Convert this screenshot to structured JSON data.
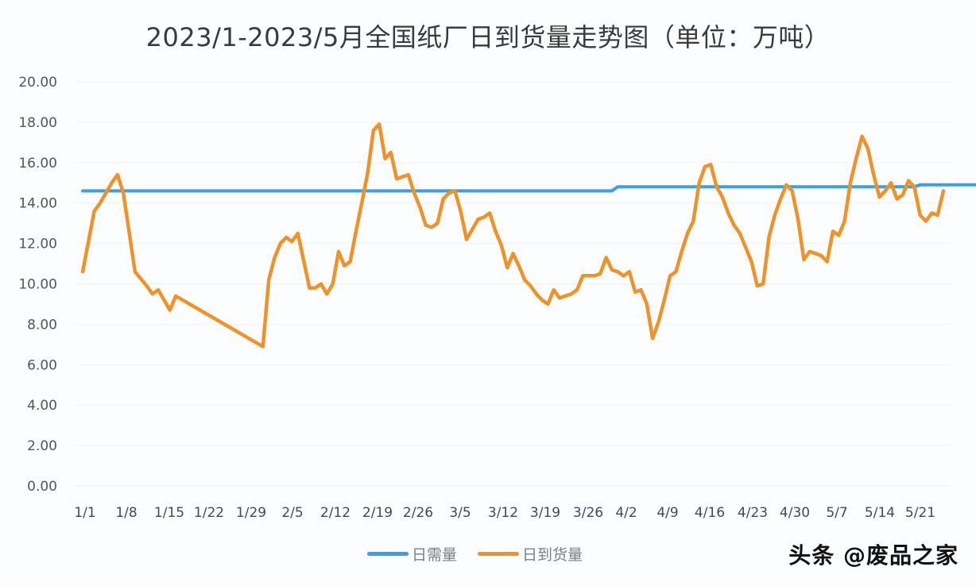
{
  "title": "2023/1-2023/5月全国纸厂日到货量走势图（单位：万吨）",
  "watermark": "头条 @废品之家",
  "legend": [
    {
      "label": "日需量",
      "color": "#3aa0e6"
    },
    {
      "label": "日到货量",
      "color": "#f0922a"
    }
  ],
  "y_ticks": [
    "20.00",
    "18.00",
    "16.00",
    "14.00",
    "12.00",
    "10.00",
    "8.00",
    "6.00",
    "4.00",
    "2.00",
    "0.00"
  ],
  "x_ticks": [
    "1/1",
    "1/8",
    "1/15",
    "1/22",
    "1/29",
    "2/5",
    "2/12",
    "2/19",
    "2/26",
    "3/5",
    "3/12",
    "3/19",
    "3/26",
    "4/2",
    "4/9",
    "4/16",
    "4/23",
    "4/30",
    "5/7",
    "5/14",
    "5/21"
  ],
  "chart_data": {
    "type": "line",
    "title": "2023/1-2023/5月全国纸厂日到货量走势图（单位：万吨）",
    "xlabel": "",
    "ylabel": "万吨",
    "ylim": [
      0,
      20
    ],
    "grid": true,
    "legend_position": "bottom",
    "categories": [
      "1/1",
      "1/8",
      "1/15",
      "1/22",
      "1/29",
      "2/5",
      "2/12",
      "2/19",
      "2/26",
      "3/5",
      "3/12",
      "3/19",
      "3/26",
      "4/2",
      "4/9",
      "4/16",
      "4/23",
      "4/30",
      "5/7",
      "5/14",
      "5/21"
    ],
    "series": [
      {
        "name": "日需量",
        "color": "#3aa0e6",
        "points": [
          [
            0,
            14.6
          ],
          [
            91,
            14.6
          ],
          [
            92,
            14.8
          ],
          [
            143,
            14.8
          ],
          [
            144,
            14.9
          ],
          [
            156,
            14.9
          ]
        ]
      },
      {
        "name": "日到货量",
        "color": "#f0922a",
        "points": [
          [
            0,
            10.6
          ],
          [
            2,
            13.6
          ],
          [
            3,
            14.0
          ],
          [
            5,
            15.0
          ],
          [
            6,
            15.4
          ],
          [
            7,
            14.5
          ],
          [
            9,
            10.6
          ],
          [
            11,
            9.9
          ],
          [
            12,
            9.5
          ],
          [
            13,
            9.7
          ],
          [
            15,
            8.7
          ],
          [
            16,
            9.4
          ],
          [
            31,
            6.9
          ],
          [
            32,
            10.2
          ],
          [
            33,
            11.3
          ],
          [
            34,
            12.0
          ],
          [
            35,
            12.3
          ],
          [
            36,
            12.1
          ],
          [
            37,
            12.5
          ],
          [
            39,
            9.8
          ],
          [
            40,
            9.8
          ],
          [
            41,
            10.0
          ],
          [
            42,
            9.5
          ],
          [
            43,
            10.0
          ],
          [
            44,
            11.6
          ],
          [
            45,
            10.9
          ],
          [
            46,
            11.1
          ],
          [
            47,
            12.6
          ],
          [
            48,
            14.0
          ],
          [
            49,
            15.5
          ],
          [
            50,
            17.6
          ],
          [
            51,
            17.9
          ],
          [
            52,
            16.2
          ],
          [
            53,
            16.5
          ],
          [
            54,
            15.2
          ],
          [
            55,
            15.3
          ],
          [
            56,
            15.4
          ],
          [
            57,
            14.5
          ],
          [
            58,
            13.8
          ],
          [
            59,
            12.9
          ],
          [
            60,
            12.8
          ],
          [
            61,
            13.0
          ],
          [
            62,
            14.2
          ],
          [
            63,
            14.5
          ],
          [
            64,
            14.6
          ],
          [
            65,
            13.6
          ],
          [
            66,
            12.2
          ],
          [
            67,
            12.7
          ],
          [
            68,
            13.2
          ],
          [
            69,
            13.3
          ],
          [
            70,
            13.5
          ],
          [
            71,
            12.6
          ],
          [
            72,
            11.9
          ],
          [
            73,
            10.8
          ],
          [
            74,
            11.5
          ],
          [
            75,
            10.9
          ],
          [
            76,
            10.2
          ],
          [
            77,
            9.9
          ],
          [
            78,
            9.5
          ],
          [
            79,
            9.2
          ],
          [
            80,
            9.0
          ],
          [
            81,
            9.7
          ],
          [
            82,
            9.3
          ],
          [
            83,
            9.4
          ],
          [
            84,
            9.5
          ],
          [
            85,
            9.7
          ],
          [
            86,
            10.4
          ],
          [
            87,
            10.4
          ],
          [
            88,
            10.4
          ],
          [
            89,
            10.5
          ],
          [
            90,
            11.3
          ],
          [
            91,
            10.7
          ],
          [
            92,
            10.6
          ],
          [
            93,
            10.4
          ],
          [
            94,
            10.6
          ],
          [
            95,
            9.6
          ],
          [
            96,
            9.7
          ],
          [
            97,
            9.0
          ],
          [
            98,
            7.3
          ],
          [
            99,
            8.1
          ],
          [
            100,
            9.2
          ],
          [
            101,
            10.4
          ],
          [
            102,
            10.6
          ],
          [
            103,
            11.6
          ],
          [
            104,
            12.5
          ],
          [
            105,
            13.1
          ],
          [
            106,
            15.0
          ],
          [
            107,
            15.8
          ],
          [
            108,
            15.9
          ],
          [
            109,
            14.8
          ],
          [
            110,
            14.3
          ],
          [
            111,
            13.5
          ],
          [
            112,
            12.9
          ],
          [
            113,
            12.5
          ],
          [
            114,
            11.8
          ],
          [
            115,
            11.1
          ],
          [
            116,
            9.9
          ],
          [
            117,
            10.0
          ],
          [
            118,
            12.3
          ],
          [
            119,
            13.4
          ],
          [
            120,
            14.2
          ],
          [
            121,
            14.9
          ],
          [
            122,
            14.6
          ],
          [
            123,
            13.2
          ],
          [
            124,
            11.2
          ],
          [
            125,
            11.6
          ],
          [
            126,
            11.5
          ],
          [
            127,
            11.4
          ],
          [
            128,
            11.1
          ],
          [
            129,
            12.6
          ],
          [
            130,
            12.4
          ],
          [
            131,
            13.1
          ],
          [
            132,
            15.0
          ],
          [
            133,
            16.2
          ],
          [
            134,
            17.3
          ],
          [
            135,
            16.7
          ],
          [
            136,
            15.4
          ],
          [
            137,
            14.3
          ],
          [
            138,
            14.6
          ],
          [
            139,
            15.0
          ],
          [
            140,
            14.2
          ],
          [
            141,
            14.4
          ],
          [
            142,
            15.1
          ],
          [
            143,
            14.8
          ],
          [
            144,
            13.4
          ],
          [
            145,
            13.1
          ],
          [
            146,
            13.5
          ],
          [
            147,
            13.4
          ],
          [
            148,
            14.6
          ]
        ]
      }
    ]
  }
}
